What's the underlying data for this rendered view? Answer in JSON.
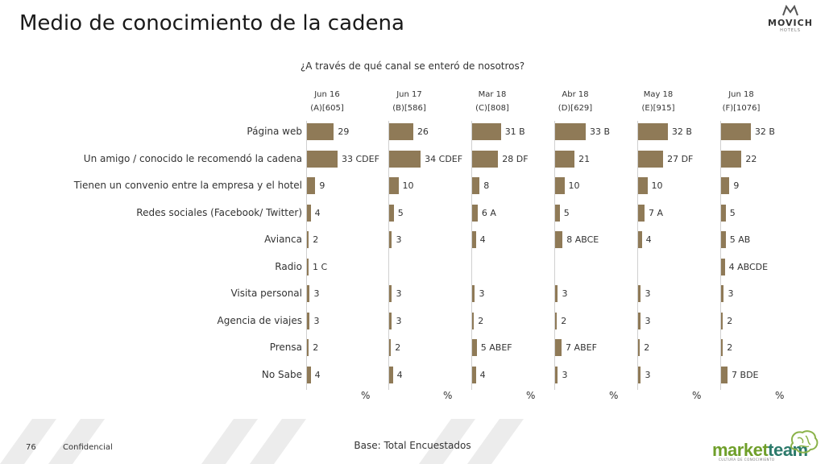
{
  "title": "Medio de conocimiento de la cadena",
  "logo": {
    "brand": "MOVICH",
    "sub": "HOTELS"
  },
  "footer": {
    "page": "76",
    "confidential": "Confidencial",
    "base": "Base: Total Encuestados"
  },
  "partner_logo": {
    "part1": "market",
    "part2": "team",
    "tagline": "CULTURA DE CONOCIMIENTO"
  },
  "colors": {
    "bar": "#8f7a57",
    "axis": "#d0d0d0"
  },
  "chart_data": {
    "type": "bar",
    "orientation": "horizontal",
    "subtitle": "¿A través de qué canal se enteró de nosotros?",
    "unit_label": "%",
    "categories": [
      "Página web",
      "Un amigo / conocido le recomendó la cadena",
      "Tienen un convenio entre la empresa y el hotel",
      "Redes sociales (Facebook/ Twitter)",
      "Avianca",
      "Radio",
      "Visita personal",
      "Agencia de viajes",
      "Prensa",
      "No Sabe"
    ],
    "series": [
      {
        "period": "Jun 16",
        "base": "(A)[605]",
        "values": [
          29,
          33,
          9,
          4,
          2,
          1,
          3,
          3,
          2,
          4
        ],
        "sig": [
          "",
          "CDEF",
          "",
          "",
          "",
          "C",
          "",
          "",
          "",
          ""
        ]
      },
      {
        "period": "Jun 17",
        "base": "(B)[586]",
        "values": [
          26,
          34,
          10,
          5,
          3,
          null,
          3,
          3,
          2,
          4
        ],
        "sig": [
          "",
          "CDEF",
          "",
          "",
          "",
          "",
          "",
          "",
          "",
          ""
        ]
      },
      {
        "period": "Mar 18",
        "base": "(C)[808]",
        "values": [
          31,
          28,
          8,
          6,
          4,
          null,
          3,
          2,
          5,
          4
        ],
        "sig": [
          "B",
          "DF",
          "",
          "A",
          "",
          "",
          "",
          "",
          "ABEF",
          ""
        ]
      },
      {
        "period": "Abr 18",
        "base": "(D)[629]",
        "values": [
          33,
          21,
          10,
          5,
          8,
          null,
          3,
          2,
          7,
          3
        ],
        "sig": [
          "B",
          "",
          "",
          "",
          "ABCE",
          "",
          "",
          "",
          "ABEF",
          ""
        ]
      },
      {
        "period": "May 18",
        "base": "(E)[915]",
        "values": [
          32,
          27,
          10,
          7,
          4,
          null,
          3,
          3,
          2,
          3
        ],
        "sig": [
          "B",
          "DF",
          "",
          "A",
          "",
          "",
          "",
          "",
          "",
          ""
        ]
      },
      {
        "period": "Jun 18",
        "base": "(F)[1076]",
        "values": [
          32,
          22,
          9,
          5,
          5,
          4,
          3,
          2,
          2,
          7
        ],
        "sig": [
          "B",
          "",
          "",
          "",
          "AB",
          "ABCDE",
          "",
          "",
          "",
          "BDE"
        ]
      }
    ],
    "xlim": [
      0,
      40
    ]
  }
}
